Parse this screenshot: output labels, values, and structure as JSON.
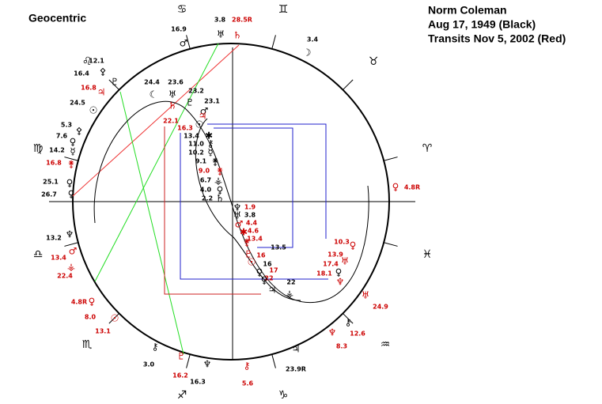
{
  "header": {
    "left": "Geocentric",
    "right": [
      "Norm Coleman",
      "Aug 17, 1949 (Black)",
      "Transits Nov 5, 2002 (Red)"
    ]
  },
  "signs": [
    "♋",
    "♊",
    "♉",
    "♈",
    "♓",
    "♒",
    "♑",
    "♐",
    "♏",
    "♎",
    "♍",
    "♌"
  ],
  "labels": [
    "16.9",
    "♂",
    "3.8",
    "♅",
    "28.5R",
    "♄",
    "3.4",
    "☽",
    "12.1",
    "⚴",
    "16.4",
    "♇",
    "16.8",
    "♃",
    "24.5",
    "☉",
    "24.4",
    "23.6",
    "☾",
    "♅",
    "23.2",
    "♇",
    "23.1",
    "♂",
    "♄",
    "22.1",
    "16.3",
    "♃",
    "☉",
    "13.4",
    "✱",
    "11.0",
    "⚷",
    "10.2",
    "☿",
    "9.1",
    "⚵",
    "9.0",
    "⚵",
    "6.7",
    "⚶",
    "4.0",
    "♀",
    "2.2",
    "♄",
    "♆",
    "1.9",
    "3.8",
    "♅",
    "4.4",
    "♂",
    "4.6",
    "✱",
    "13.4",
    "⚵",
    "13.5",
    "16",
    "♇",
    "16",
    "☉",
    "17",
    "♀",
    "22",
    "♀",
    "22",
    "♃",
    "⚶",
    "10.3",
    "♀",
    "13.9",
    "♅",
    "17.4",
    "♀",
    "18.1",
    "♆",
    "♀",
    "4.8R",
    "♅",
    "24.9",
    "♆",
    "⚷",
    "12.6",
    "8.3",
    "♃",
    "23.9R",
    "⚷",
    "5.6",
    "♆",
    "16.3",
    "♇",
    "16.2",
    "⚷",
    "3.0",
    "13.2",
    "♆",
    "13.4",
    "♂",
    "⚶",
    "22.4",
    "4.8R",
    "♀",
    "8.0",
    "☉",
    "13.1",
    "5.3",
    "⚴",
    "7.6",
    "♀",
    "14.2",
    "☿",
    "16.8",
    "⚵",
    "25.1",
    "♀",
    "26.7",
    "♀"
  ]
}
